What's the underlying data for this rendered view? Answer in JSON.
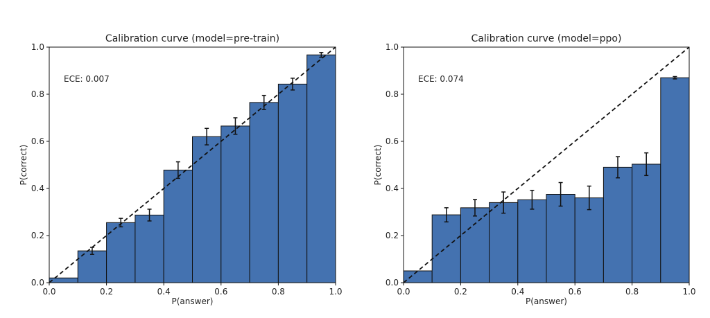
{
  "chart_data": [
    {
      "type": "bar",
      "title": "Calibration curve (model=pre-train)",
      "xlabel": "P(answer)",
      "ylabel": "P(correct)",
      "annotation": "ECE: 0.007",
      "xlim": [
        0,
        1
      ],
      "ylim": [
        0,
        1
      ],
      "xticks": [
        "0.0",
        "0.2",
        "0.4",
        "0.6",
        "0.8",
        "1.0"
      ],
      "yticks": [
        "0.0",
        "0.2",
        "0.4",
        "0.6",
        "0.8",
        "1.0"
      ],
      "bin_edges": [
        0.0,
        0.1,
        0.2,
        0.3,
        0.4,
        0.5,
        0.6,
        0.7,
        0.8,
        0.9,
        1.0
      ],
      "values": [
        0.02,
        0.135,
        0.255,
        0.287,
        0.478,
        0.62,
        0.665,
        0.765,
        0.843,
        0.967
      ],
      "errors": [
        0.0,
        0.015,
        0.018,
        0.025,
        0.035,
        0.035,
        0.035,
        0.03,
        0.025,
        0.01
      ],
      "reference_line": "diagonal dashed",
      "grid": false,
      "bar_color": "#4472b0"
    },
    {
      "type": "bar",
      "title": "Calibration curve (model=ppo)",
      "xlabel": "P(answer)",
      "ylabel": "P(correct)",
      "annotation": "ECE: 0.074",
      "xlim": [
        0,
        1
      ],
      "ylim": [
        0,
        1
      ],
      "xticks": [
        "0.0",
        "0.2",
        "0.4",
        "0.6",
        "0.8",
        "1.0"
      ],
      "yticks": [
        "0.0",
        "0.2",
        "0.4",
        "0.6",
        "0.8",
        "1.0"
      ],
      "bin_edges": [
        0.0,
        0.1,
        0.2,
        0.3,
        0.4,
        0.5,
        0.6,
        0.7,
        0.8,
        0.9,
        1.0
      ],
      "values": [
        0.05,
        0.288,
        0.318,
        0.34,
        0.352,
        0.375,
        0.36,
        0.49,
        0.503,
        0.87
      ],
      "errors": [
        0.0,
        0.03,
        0.035,
        0.045,
        0.04,
        0.05,
        0.05,
        0.045,
        0.048,
        0.005
      ],
      "reference_line": "diagonal dashed",
      "grid": false,
      "bar_color": "#4472b0"
    }
  ]
}
